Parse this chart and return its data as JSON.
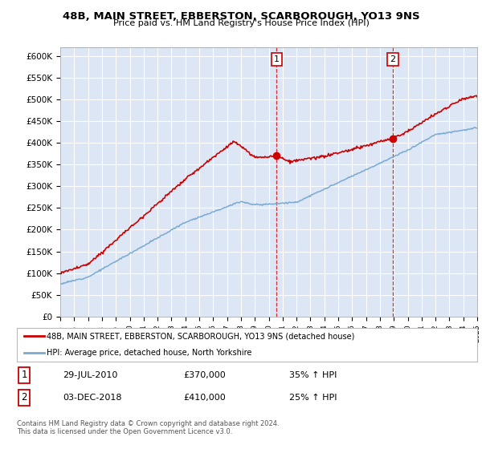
{
  "title": "48B, MAIN STREET, EBBERSTON, SCARBOROUGH, YO13 9NS",
  "subtitle": "Price paid vs. HM Land Registry's House Price Index (HPI)",
  "ylim": [
    0,
    620000
  ],
  "yticks": [
    0,
    50000,
    100000,
    150000,
    200000,
    250000,
    300000,
    350000,
    400000,
    450000,
    500000,
    550000,
    600000
  ],
  "ytick_labels": [
    "£0",
    "£50K",
    "£100K",
    "£150K",
    "£200K",
    "£250K",
    "£300K",
    "£350K",
    "£400K",
    "£450K",
    "£500K",
    "£550K",
    "£600K"
  ],
  "background_color": "#ffffff",
  "plot_bg_color": "#dce6f5",
  "grid_color": "#ffffff",
  "red_color": "#cc0000",
  "blue_color": "#7aaad0",
  "sale1_date": 2010.57,
  "sale1_price": 370000,
  "sale2_date": 2018.92,
  "sale2_price": 410000,
  "legend_line1": "48B, MAIN STREET, EBBERSTON, SCARBOROUGH, YO13 9NS (detached house)",
  "legend_line2": "HPI: Average price, detached house, North Yorkshire",
  "table_row1": [
    "1",
    "29-JUL-2010",
    "£370,000",
    "35% ↑ HPI"
  ],
  "table_row2": [
    "2",
    "03-DEC-2018",
    "£410,000",
    "25% ↑ HPI"
  ],
  "footer": "Contains HM Land Registry data © Crown copyright and database right 2024.\nThis data is licensed under the Open Government Licence v3.0.",
  "xmin": 1995,
  "xmax": 2025
}
